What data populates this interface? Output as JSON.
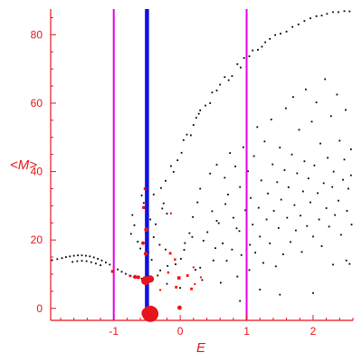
{
  "colors": {
    "axis": "#e8141b",
    "points": "#000000",
    "markers": "#ff0000",
    "marker_fill_large": "#e8141b",
    "blue_line": "#1010e0",
    "magenta_line": "#e600e6"
  },
  "chart_data": {
    "type": "scatter",
    "xlabel": "E",
    "ylabel": "<M>",
    "xlim": [
      -1.95,
      2.6
    ],
    "ylim": [
      -3.5,
      87.5
    ],
    "grid": false,
    "x_ticks": [
      {
        "value": -1,
        "label": "-1"
      },
      {
        "value": 0,
        "label": "0"
      },
      {
        "value": 1,
        "label": "1"
      },
      {
        "value": 2,
        "label": "2"
      }
    ],
    "y_ticks": [
      {
        "value": 0,
        "label": "0"
      },
      {
        "value": 20,
        "label": "20"
      },
      {
        "value": 40,
        "label": "40"
      },
      {
        "value": 60,
        "label": "60"
      },
      {
        "value": 80,
        "label": "80"
      }
    ],
    "vertical_lines": [
      {
        "x": -1.0,
        "color": "magenta",
        "width": "thin"
      },
      {
        "x": -0.5,
        "color": "blue",
        "width": "thick"
      },
      {
        "x": 1.0,
        "color": "magenta",
        "width": "thin"
      }
    ],
    "series": [
      {
        "style": "black-dots",
        "points": [
          [
            -1.93,
            14.1
          ],
          [
            -1.85,
            14.4
          ],
          [
            -1.78,
            14.7
          ],
          [
            -1.72,
            15.0
          ],
          [
            -1.66,
            15.2
          ],
          [
            -1.6,
            15.4
          ],
          [
            -1.54,
            15.5
          ],
          [
            -1.48,
            15.5
          ],
          [
            -1.42,
            15.4
          ],
          [
            -1.36,
            15.2
          ],
          [
            -1.3,
            14.9
          ],
          [
            -1.24,
            14.5
          ],
          [
            -1.18,
            14.0
          ],
          [
            -1.12,
            13.4
          ],
          [
            -1.06,
            12.8
          ],
          [
            -1.0,
            12.1
          ],
          [
            -0.94,
            11.4
          ],
          [
            -0.88,
            10.7
          ],
          [
            -0.82,
            10.1
          ],
          [
            -0.76,
            9.6
          ],
          [
            -0.7,
            9.2
          ],
          [
            -0.64,
            8.9
          ],
          [
            -0.58,
            8.7
          ],
          [
            -1.62,
            13.6
          ],
          [
            -1.55,
            13.8
          ],
          [
            -1.48,
            13.9
          ],
          [
            -1.41,
            13.8
          ],
          [
            -1.34,
            13.5
          ],
          [
            -1.27,
            13.1
          ],
          [
            -1.2,
            12.6
          ],
          [
            -0.74,
            21.8
          ],
          [
            -0.72,
            27.3
          ],
          [
            -0.69,
            24.3
          ],
          [
            -0.64,
            19.5
          ],
          [
            -0.6,
            17.5
          ],
          [
            -0.58,
            33.0
          ],
          [
            -0.55,
            30.8
          ],
          [
            -0.52,
            22.0
          ],
          [
            -0.48,
            16.4
          ],
          [
            -0.45,
            26.0
          ],
          [
            -0.43,
            14.2
          ],
          [
            -0.4,
            20.8
          ],
          [
            -0.37,
            24.6
          ],
          [
            -0.34,
            9.6
          ],
          [
            -0.31,
            18.6
          ],
          [
            -0.3,
            11.1
          ],
          [
            -0.27,
            29.2
          ],
          [
            -0.25,
            30.7
          ],
          [
            -0.22,
            17.2
          ],
          [
            -0.2,
            27.7
          ],
          [
            -0.19,
            12.4
          ],
          [
            -0.5,
            34.8
          ],
          [
            -0.4,
            33.3
          ],
          [
            -0.29,
            35.2
          ],
          [
            -0.22,
            37.3
          ],
          [
            -0.14,
            41.6
          ],
          [
            -0.1,
            39.9
          ],
          [
            -0.04,
            43.3
          ],
          [
            0.02,
            45.5
          ],
          [
            0.05,
            49.2
          ],
          [
            0.1,
            50.8
          ],
          [
            0.16,
            50.6
          ],
          [
            0.2,
            53.6
          ],
          [
            0.24,
            55.7
          ],
          [
            0.28,
            56.9
          ],
          [
            0.3,
            57.9
          ],
          [
            0.38,
            59.3
          ],
          [
            0.45,
            60.0
          ],
          [
            0.48,
            63.1
          ],
          [
            0.55,
            63.7
          ],
          [
            0.6,
            65.4
          ],
          [
            0.67,
            67.6
          ],
          [
            0.73,
            66.7
          ],
          [
            0.78,
            67.9
          ],
          [
            0.86,
            71.4
          ],
          [
            0.91,
            70.4
          ],
          [
            0.96,
            73.2
          ],
          [
            1.04,
            73.7
          ],
          [
            1.09,
            75.4
          ],
          [
            1.17,
            75.6
          ],
          [
            1.23,
            76.5
          ],
          [
            1.28,
            77.8
          ],
          [
            1.35,
            78.8
          ],
          [
            1.43,
            79.9
          ],
          [
            1.51,
            80.3
          ],
          [
            1.6,
            80.9
          ],
          [
            1.69,
            82.3
          ],
          [
            1.78,
            83.0
          ],
          [
            1.87,
            84.0
          ],
          [
            1.96,
            84.8
          ],
          [
            2.05,
            85.4
          ],
          [
            2.13,
            85.6
          ],
          [
            2.21,
            86.1
          ],
          [
            2.3,
            86.6
          ],
          [
            2.38,
            86.6
          ],
          [
            2.47,
            86.9
          ],
          [
            2.55,
            86.8
          ],
          [
            -0.07,
            12.9
          ],
          [
            0.01,
            14.5
          ],
          [
            0.06,
            17.1
          ],
          [
            0.07,
            19.1
          ],
          [
            0.14,
            22.0
          ],
          [
            0.18,
            20.9
          ],
          [
            0.19,
            26.7
          ],
          [
            0.23,
            11.3
          ],
          [
            0.26,
            31.0
          ],
          [
            0.3,
            35.0
          ],
          [
            0.33,
            8.3
          ],
          [
            0.35,
            19.8
          ],
          [
            0.41,
            22.3
          ],
          [
            0.45,
            39.4
          ],
          [
            0.48,
            28.4
          ],
          [
            0.5,
            14.0
          ],
          [
            0.53,
            17.6
          ],
          [
            0.55,
            42.0
          ],
          [
            0.58,
            24.9
          ],
          [
            0.61,
            7.5
          ],
          [
            0.64,
            19.0
          ],
          [
            0.67,
            38.2
          ],
          [
            0.68,
            30.5
          ],
          [
            0.7,
            13.9
          ],
          [
            0.72,
            33.3
          ],
          [
            0.75,
            45.4
          ],
          [
            0.78,
            17.2
          ],
          [
            0.8,
            26.5
          ],
          [
            0.83,
            41.5
          ],
          [
            0.86,
            9.3
          ],
          [
            0.89,
            22.6
          ],
          [
            0.9,
            35.5
          ],
          [
            0.92,
            15.6
          ],
          [
            0.95,
            47.1
          ],
          [
            0.98,
            28.7
          ],
          [
            1.0,
            19.7
          ],
          [
            1.02,
            40.1
          ],
          [
            1.04,
            11.2
          ],
          [
            1.06,
            32.3
          ],
          [
            1.09,
            24.5
          ],
          [
            1.11,
            44.5
          ],
          [
            1.13,
            16.3
          ],
          [
            1.16,
            53.0
          ],
          [
            1.18,
            29.4
          ],
          [
            1.2,
            21.0
          ],
          [
            1.22,
            37.4
          ],
          [
            1.25,
            13.3
          ],
          [
            1.27,
            48.8
          ],
          [
            1.3,
            26.0
          ],
          [
            1.32,
            33.6
          ],
          [
            1.35,
            19.0
          ],
          [
            1.37,
            55.2
          ],
          [
            1.39,
            42.1
          ],
          [
            1.41,
            28.5
          ],
          [
            1.44,
            12.3
          ],
          [
            1.46,
            36.9
          ],
          [
            1.48,
            23.5
          ],
          [
            1.5,
            47.0
          ],
          [
            1.52,
            31.8
          ],
          [
            1.55,
            15.8
          ],
          [
            1.57,
            40.4
          ],
          [
            1.59,
            58.5
          ],
          [
            1.61,
            26.5
          ],
          [
            1.63,
            35.4
          ],
          [
            1.66,
            19.4
          ],
          [
            1.68,
            45.0
          ],
          [
            1.7,
            61.8
          ],
          [
            1.72,
            30.2
          ],
          [
            1.74,
            22.8
          ],
          [
            1.76,
            39.5
          ],
          [
            1.79,
            52.2
          ],
          [
            1.81,
            27.1
          ],
          [
            1.83,
            16.5
          ],
          [
            1.85,
            34.2
          ],
          [
            1.87,
            43.0
          ],
          [
            1.89,
            64.0
          ],
          [
            1.91,
            24.1
          ],
          [
            1.93,
            38.0
          ],
          [
            1.96,
            31.0
          ],
          [
            1.98,
            54.6
          ],
          [
            2.0,
            21.0
          ],
          [
            2.02,
            41.8
          ],
          [
            2.05,
            60.2
          ],
          [
            2.07,
            33.7
          ],
          [
            2.09,
            26.0
          ],
          [
            2.11,
            48.2
          ],
          [
            2.13,
            18.2
          ],
          [
            2.16,
            36.6
          ],
          [
            2.18,
            67.0
          ],
          [
            2.2,
            29.3
          ],
          [
            2.22,
            44.0
          ],
          [
            2.24,
            23.9
          ],
          [
            2.27,
            56.2
          ],
          [
            2.29,
            35.5
          ],
          [
            2.31,
            40.0
          ],
          [
            2.33,
            27.3
          ],
          [
            2.36,
            62.5
          ],
          [
            2.38,
            31.5
          ],
          [
            2.4,
            49.0
          ],
          [
            2.42,
            21.5
          ],
          [
            2.45,
            37.6
          ],
          [
            2.47,
            43.5
          ],
          [
            2.49,
            58.0
          ],
          [
            2.51,
            28.5
          ],
          [
            2.53,
            35.0
          ],
          [
            2.55,
            13.0
          ],
          [
            2.57,
            46.5
          ],
          [
            2.57,
            38.9
          ],
          [
            2.58,
            24.5
          ],
          [
            0.9,
            2.2
          ],
          [
            1.2,
            5.5
          ],
          [
            1.5,
            4.0
          ],
          [
            2.0,
            4.5
          ],
          [
            2.3,
            12.8
          ],
          [
            2.5,
            14.0
          ],
          [
            0.0,
            6.0
          ],
          [
            0.3,
            11.9
          ],
          [
            -0.2,
            7.2
          ],
          [
            0.55,
            25.6
          ],
          [
            0.85,
            23.4
          ],
          [
            1.05,
            18.6
          ]
        ]
      },
      {
        "style": "red-markers",
        "points": [
          {
            "x": -0.45,
            "y": -1.6,
            "size": 9
          },
          {
            "x": -0.5,
            "y": -1.4,
            "size": 6
          },
          {
            "x": -0.52,
            "y": 8.1,
            "size": 5
          },
          {
            "x": -0.45,
            "y": 8.6,
            "size": 4
          },
          {
            "x": -0.68,
            "y": 9.2,
            "size": 2.2
          },
          {
            "x": -0.63,
            "y": 9.1,
            "size": 1.8
          },
          {
            "x": -0.75,
            "y": 9.5,
            "size": 1.2
          },
          {
            "x": -0.52,
            "y": 16.0,
            "size": 2.2
          },
          {
            "x": -0.56,
            "y": 19.1,
            "size": 2.0
          },
          {
            "x": -0.51,
            "y": 23.0,
            "size": 2.4
          },
          {
            "x": -0.55,
            "y": 29.5,
            "size": 1.6
          },
          {
            "x": -0.53,
            "y": 35.0,
            "size": 1.4
          },
          {
            "x": -1.02,
            "y": 10.8,
            "size": 1.6
          },
          {
            "x": -0.15,
            "y": 16.1,
            "size": 1.4
          },
          {
            "x": -0.08,
            "y": 14.3,
            "size": 1.2
          },
          {
            "x": -0.14,
            "y": 27.8,
            "size": 1.0
          },
          {
            "x": -0.18,
            "y": 10.5,
            "size": 1.2
          },
          {
            "x": -0.06,
            "y": 6.2,
            "size": 1.4
          },
          {
            "x": -0.02,
            "y": 8.9,
            "size": 1.8
          },
          {
            "x": -0.01,
            "y": 0.2,
            "size": 2.4
          },
          {
            "x": 0.11,
            "y": 9.6,
            "size": 1.4
          },
          {
            "x": 0.17,
            "y": 5.7,
            "size": 1.4
          },
          {
            "x": 0.22,
            "y": 7.1,
            "size": 1.0
          },
          {
            "x": 0.31,
            "y": 9.1,
            "size": 1.0
          },
          {
            "x": 0.2,
            "y": 12.0,
            "size": 1.0
          },
          {
            "x": -0.3,
            "y": 5.4,
            "size": 1.0
          }
        ]
      }
    ]
  }
}
